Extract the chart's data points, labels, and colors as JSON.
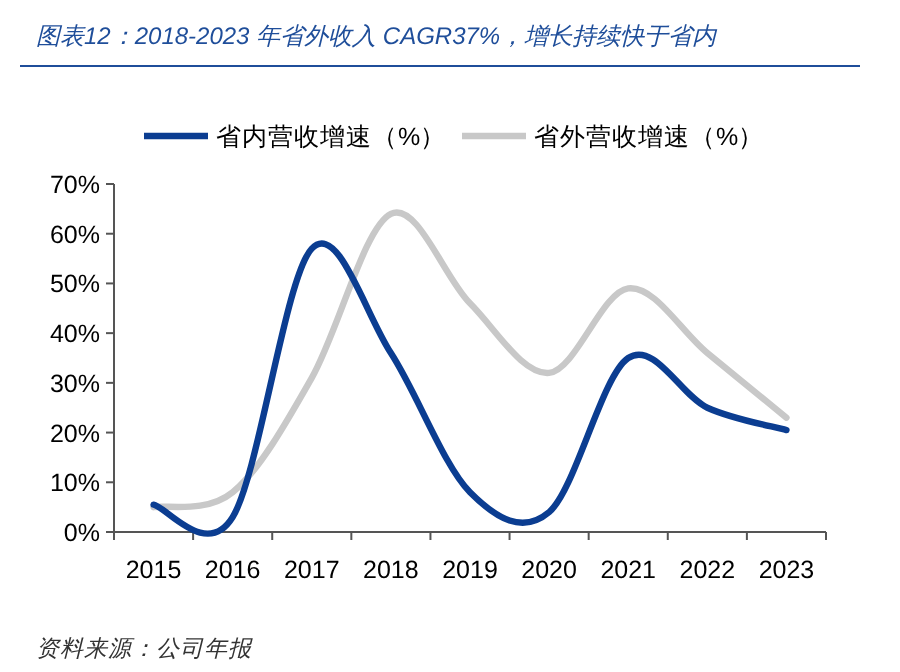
{
  "chart_data": {
    "type": "line",
    "title": "图表12：2018-2023 年省外收入 CAGR37%，增长持续快于省内",
    "categories": [
      "2015",
      "2016",
      "2017",
      "2018",
      "2019",
      "2020",
      "2021",
      "2022",
      "2023"
    ],
    "series": [
      {
        "name": "省内营收增速（%）",
        "color": "#0b3d91",
        "values": [
          5.5,
          3,
          57,
          36,
          8,
          4,
          35,
          25,
          20.5
        ]
      },
      {
        "name": "省外营收增速（%）",
        "color": "#c8c8c8",
        "values": [
          5,
          8,
          31,
          64,
          46,
          32,
          49,
          36,
          23
        ]
      }
    ],
    "ylim": [
      0,
      70
    ],
    "yticks": [
      {
        "value": 0,
        "label": "0%"
      },
      {
        "value": 10,
        "label": "10%"
      },
      {
        "value": 20,
        "label": "20%"
      },
      {
        "value": 30,
        "label": "30%"
      },
      {
        "value": 40,
        "label": "40%"
      },
      {
        "value": 50,
        "label": "50%"
      },
      {
        "value": 60,
        "label": "60%"
      },
      {
        "value": 70,
        "label": "70%"
      }
    ],
    "legend": "top",
    "grid": false,
    "marker": "none",
    "line_style": "solid",
    "annotations": [
      "资料来源：公司年报"
    ]
  }
}
